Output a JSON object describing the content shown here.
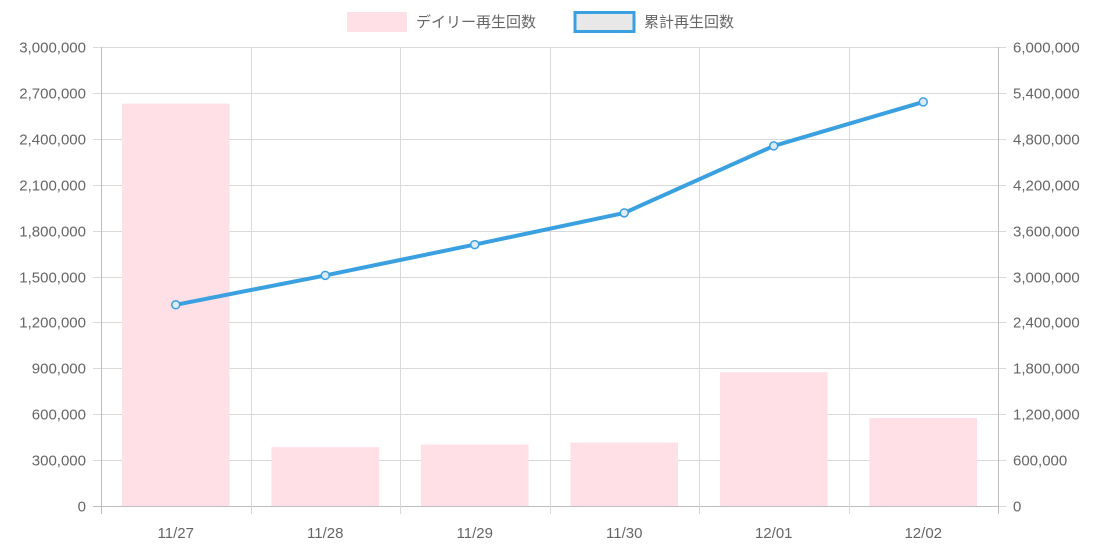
{
  "chart_data": {
    "type": "bar",
    "categories": [
      "11/27",
      "11/28",
      "11/29",
      "11/30",
      "12/01",
      "12/02"
    ],
    "series": [
      {
        "name": "デイリー再生回数",
        "type": "bar",
        "axis": "left",
        "color": "#ffe0e6",
        "values": [
          2630000,
          385000,
          402000,
          415000,
          875000,
          575000
        ]
      },
      {
        "name": "累計再生回数",
        "type": "line",
        "axis": "right",
        "color": "#3aa0e0",
        "values": [
          2630000,
          3015000,
          3417000,
          3832000,
          4707000,
          5282000
        ]
      }
    ],
    "y_left": {
      "range": [
        0,
        3000000
      ],
      "ticks": [
        0,
        300000,
        600000,
        900000,
        1200000,
        1500000,
        1800000,
        2100000,
        2400000,
        2700000,
        3000000
      ],
      "tick_labels": [
        "0",
        "300,000",
        "600,000",
        "900,000",
        "1,200,000",
        "1,500,000",
        "1,800,000",
        "2,100,000",
        "2,400,000",
        "2,700,000",
        "3,000,000"
      ]
    },
    "y_right": {
      "range": [
        0,
        6000000
      ],
      "ticks": [
        0,
        600000,
        1200000,
        1800000,
        2400000,
        3000000,
        3600000,
        4200000,
        4800000,
        5400000,
        6000000
      ],
      "tick_labels": [
        "0",
        "600,000",
        "1,200,000",
        "1,800,000",
        "2,400,000",
        "3,000,000",
        "3,600,000",
        "4,200,000",
        "4,800,000",
        "5,400,000",
        "6,000,000"
      ]
    },
    "grid": true,
    "legend_position": "top-center"
  }
}
